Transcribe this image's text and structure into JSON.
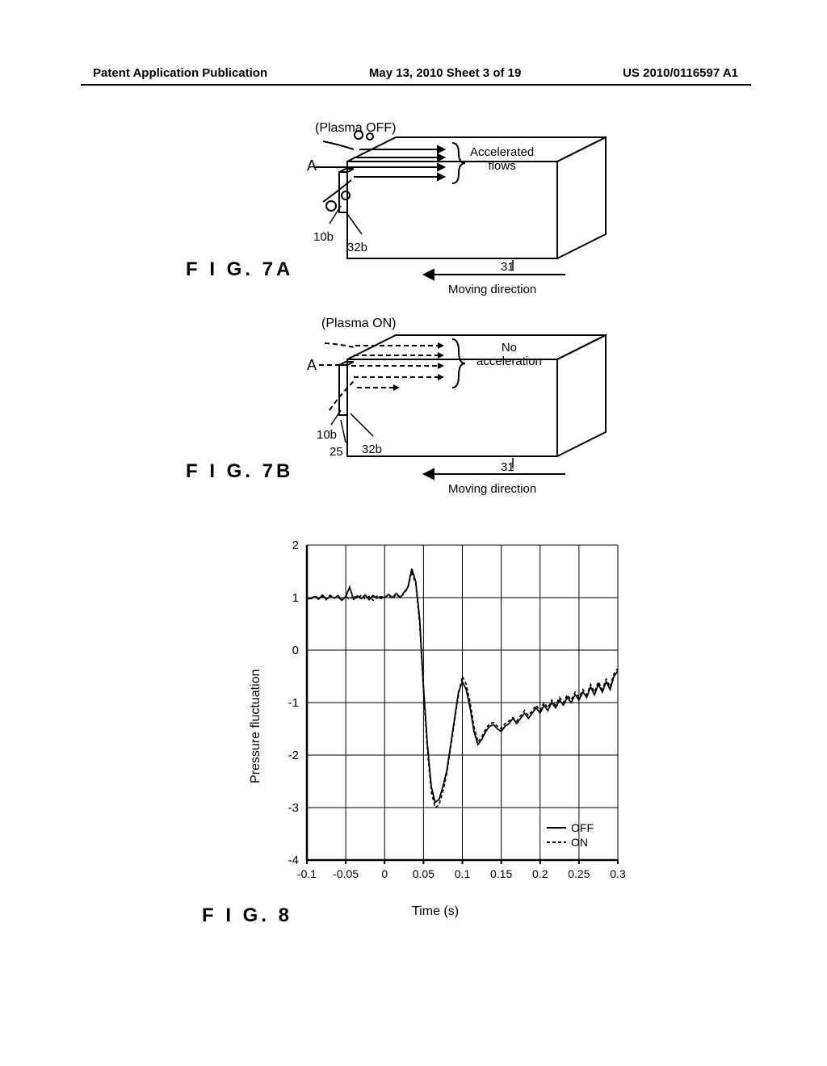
{
  "header": {
    "left": "Patent Application Publication",
    "center": "May 13, 2010  Sheet 3 of 19",
    "right": "US 2010/0116597 A1"
  },
  "fig7a": {
    "label": "F I G. 7A",
    "title": "(Plasma OFF)",
    "side_label": "A",
    "annot_right": "Accelerated\nflows",
    "ref_10b": "10b",
    "ref_32b": "32b",
    "ref_31": "31",
    "moving": "Moving direction"
  },
  "fig7b": {
    "label": "F I G. 7B",
    "title": "(Plasma ON)",
    "side_label": "A",
    "annot_right": "No\nacceleration",
    "ref_10b": "10b",
    "ref_32b": "32b",
    "ref_25": "25",
    "ref_31": "31",
    "moving": "Moving direction"
  },
  "fig8": {
    "label": "F I G. 8",
    "type": "line",
    "xlabel": "Time (s)",
    "ylabel": "Pressure fluctuation",
    "xlim": [
      -0.1,
      0.3
    ],
    "ylim": [
      -4,
      2
    ],
    "xticks": [
      "-0.1",
      "-0.05",
      "0",
      "0.05",
      "0.1",
      "0.15",
      "0.2",
      "0.25",
      "0.3"
    ],
    "yticks": [
      "2",
      "1",
      "0",
      "-1",
      "-2",
      "-3",
      "-4"
    ],
    "legend": {
      "off": "OFF",
      "on": "ON"
    },
    "colors": {
      "line_off": "#000000",
      "line_on": "#000000",
      "grid": "#000000",
      "background": "#ffffff",
      "text": "#000000"
    },
    "line_styles": {
      "off": "solid",
      "on": "dashed"
    },
    "series_off": [
      [
        -0.1,
        1.0
      ],
      [
        -0.095,
        0.98
      ],
      [
        -0.09,
        1.02
      ],
      [
        -0.085,
        0.97
      ],
      [
        -0.08,
        1.05
      ],
      [
        -0.075,
        0.96
      ],
      [
        -0.07,
        1.03
      ],
      [
        -0.065,
        0.99
      ],
      [
        -0.06,
        1.04
      ],
      [
        -0.055,
        0.95
      ],
      [
        -0.05,
        1.02
      ],
      [
        -0.045,
        1.2
      ],
      [
        -0.04,
        0.97
      ],
      [
        -0.035,
        1.03
      ],
      [
        -0.03,
        0.98
      ],
      [
        -0.025,
        1.05
      ],
      [
        -0.02,
        0.96
      ],
      [
        -0.015,
        1.04
      ],
      [
        -0.01,
        0.99
      ],
      [
        -0.005,
        1.02
      ],
      [
        0.0,
        1.0
      ],
      [
        0.005,
        1.06
      ],
      [
        0.01,
        1.0
      ],
      [
        0.015,
        1.08
      ],
      [
        0.02,
        1.0
      ],
      [
        0.025,
        1.1
      ],
      [
        0.03,
        1.2
      ],
      [
        0.035,
        1.55
      ],
      [
        0.04,
        1.3
      ],
      [
        0.045,
        0.6
      ],
      [
        0.05,
        -0.7
      ],
      [
        0.055,
        -1.8
      ],
      [
        0.06,
        -2.6
      ],
      [
        0.065,
        -2.9
      ],
      [
        0.07,
        -2.85
      ],
      [
        0.075,
        -2.6
      ],
      [
        0.08,
        -2.3
      ],
      [
        0.085,
        -1.8
      ],
      [
        0.09,
        -1.3
      ],
      [
        0.095,
        -0.8
      ],
      [
        0.1,
        -0.6
      ],
      [
        0.105,
        -0.75
      ],
      [
        0.11,
        -1.1
      ],
      [
        0.115,
        -1.55
      ],
      [
        0.12,
        -1.8
      ],
      [
        0.125,
        -1.7
      ],
      [
        0.13,
        -1.55
      ],
      [
        0.135,
        -1.45
      ],
      [
        0.14,
        -1.42
      ],
      [
        0.145,
        -1.5
      ],
      [
        0.15,
        -1.55
      ],
      [
        0.155,
        -1.45
      ],
      [
        0.16,
        -1.4
      ],
      [
        0.165,
        -1.3
      ],
      [
        0.17,
        -1.4
      ],
      [
        0.175,
        -1.3
      ],
      [
        0.18,
        -1.2
      ],
      [
        0.185,
        -1.3
      ],
      [
        0.19,
        -1.2
      ],
      [
        0.195,
        -1.1
      ],
      [
        0.2,
        -1.2
      ],
      [
        0.205,
        -1.05
      ],
      [
        0.21,
        -1.15
      ],
      [
        0.215,
        -1.0
      ],
      [
        0.22,
        -1.1
      ],
      [
        0.225,
        -0.95
      ],
      [
        0.23,
        -1.05
      ],
      [
        0.235,
        -0.9
      ],
      [
        0.24,
        -1.0
      ],
      [
        0.245,
        -0.85
      ],
      [
        0.25,
        -0.95
      ],
      [
        0.255,
        -0.8
      ],
      [
        0.26,
        -0.9
      ],
      [
        0.265,
        -0.7
      ],
      [
        0.27,
        -0.85
      ],
      [
        0.275,
        -0.65
      ],
      [
        0.28,
        -0.8
      ],
      [
        0.285,
        -0.6
      ],
      [
        0.29,
        -0.75
      ],
      [
        0.295,
        -0.5
      ],
      [
        0.3,
        -0.4
      ]
    ],
    "series_on": [
      [
        -0.1,
        1.0
      ],
      [
        -0.095,
        0.96
      ],
      [
        -0.09,
        1.04
      ],
      [
        -0.085,
        0.98
      ],
      [
        -0.08,
        1.02
      ],
      [
        -0.075,
        0.97
      ],
      [
        -0.07,
        1.05
      ],
      [
        -0.065,
        0.99
      ],
      [
        -0.06,
        1.01
      ],
      [
        -0.055,
        0.95
      ],
      [
        -0.05,
        1.03
      ],
      [
        -0.045,
        0.96
      ],
      [
        -0.04,
        1.04
      ],
      [
        -0.035,
        0.98
      ],
      [
        -0.03,
        1.05
      ],
      [
        -0.025,
        0.97
      ],
      [
        -0.02,
        1.02
      ],
      [
        -0.015,
        0.95
      ],
      [
        -0.01,
        1.03
      ],
      [
        -0.005,
        0.98
      ],
      [
        0.0,
        1.0
      ],
      [
        0.005,
        1.05
      ],
      [
        0.01,
        0.98
      ],
      [
        0.015,
        1.06
      ],
      [
        0.02,
        1.0
      ],
      [
        0.025,
        1.08
      ],
      [
        0.03,
        1.18
      ],
      [
        0.035,
        1.5
      ],
      [
        0.04,
        1.25
      ],
      [
        0.045,
        0.5
      ],
      [
        0.05,
        -0.8
      ],
      [
        0.055,
        -1.9
      ],
      [
        0.06,
        -2.7
      ],
      [
        0.065,
        -3.0
      ],
      [
        0.07,
        -2.95
      ],
      [
        0.075,
        -2.7
      ],
      [
        0.08,
        -2.35
      ],
      [
        0.085,
        -1.85
      ],
      [
        0.09,
        -1.35
      ],
      [
        0.095,
        -0.85
      ],
      [
        0.1,
        -0.5
      ],
      [
        0.105,
        -0.65
      ],
      [
        0.11,
        -1.0
      ],
      [
        0.115,
        -1.45
      ],
      [
        0.12,
        -1.75
      ],
      [
        0.125,
        -1.65
      ],
      [
        0.13,
        -1.5
      ],
      [
        0.135,
        -1.4
      ],
      [
        0.14,
        -1.38
      ],
      [
        0.145,
        -1.45
      ],
      [
        0.15,
        -1.5
      ],
      [
        0.155,
        -1.4
      ],
      [
        0.16,
        -1.35
      ],
      [
        0.165,
        -1.28
      ],
      [
        0.17,
        -1.35
      ],
      [
        0.175,
        -1.25
      ],
      [
        0.18,
        -1.15
      ],
      [
        0.185,
        -1.25
      ],
      [
        0.19,
        -1.15
      ],
      [
        0.195,
        -1.05
      ],
      [
        0.2,
        -1.15
      ],
      [
        0.205,
        -1.0
      ],
      [
        0.21,
        -1.1
      ],
      [
        0.215,
        -0.95
      ],
      [
        0.22,
        -1.05
      ],
      [
        0.225,
        -0.9
      ],
      [
        0.23,
        -1.0
      ],
      [
        0.235,
        -0.85
      ],
      [
        0.24,
        -0.95
      ],
      [
        0.245,
        -0.8
      ],
      [
        0.25,
        -0.9
      ],
      [
        0.255,
        -0.75
      ],
      [
        0.26,
        -0.85
      ],
      [
        0.265,
        -0.65
      ],
      [
        0.27,
        -0.8
      ],
      [
        0.275,
        -0.6
      ],
      [
        0.28,
        -0.75
      ],
      [
        0.285,
        -0.55
      ],
      [
        0.29,
        -0.7
      ],
      [
        0.295,
        -0.45
      ],
      [
        0.3,
        -0.35
      ]
    ]
  }
}
